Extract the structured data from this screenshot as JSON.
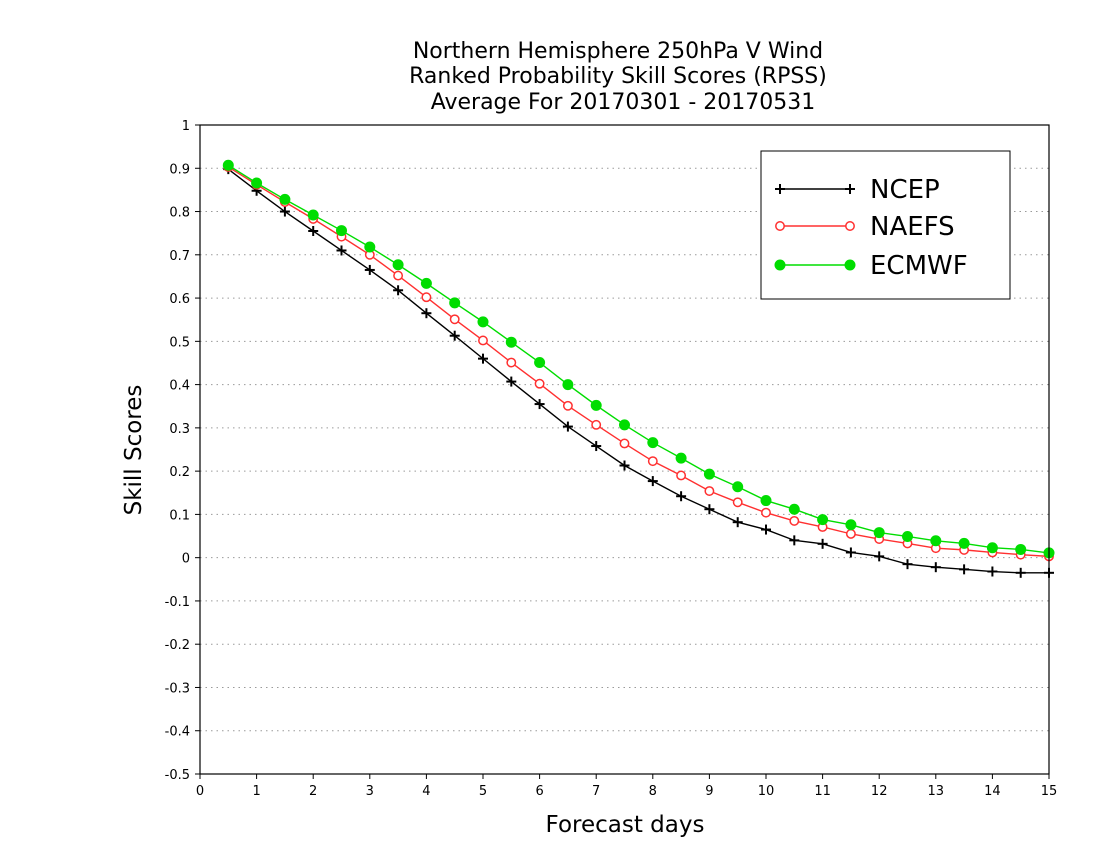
{
  "chart_data": {
    "type": "line",
    "title_lines": [
      "Northern Hemisphere 250hPa V Wind",
      "Ranked Probability Skill Scores (RPSS)",
      "Average For 20170301 - 20170531"
    ],
    "xlabel": "Forecast days",
    "ylabel": "Skill Scores",
    "xlim": [
      0,
      15
    ],
    "ylim": [
      -0.5,
      1
    ],
    "x_ticks": [
      "0",
      "1",
      "2",
      "3",
      "4",
      "5",
      "6",
      "7",
      "8",
      "9",
      "10",
      "11",
      "12",
      "13",
      "14",
      "15"
    ],
    "y_ticks": [
      "-0.5",
      "-0.4",
      "-0.3",
      "-0.2",
      "-0.1",
      "0",
      "0.1",
      "0.2",
      "0.3",
      "0.4",
      "0.5",
      "0.6",
      "0.7",
      "0.8",
      "0.9",
      "1"
    ],
    "grid": "horizontal dotted",
    "legend_position": "top-right",
    "x": [
      0.5,
      1,
      1.5,
      2,
      2.5,
      3,
      3.5,
      4,
      4.5,
      5,
      5.5,
      6,
      6.5,
      7,
      7.5,
      8,
      8.5,
      9,
      9.5,
      10,
      10.5,
      11,
      11.5,
      12,
      12.5,
      13,
      13.5,
      14,
      14.5,
      15
    ],
    "series": [
      {
        "name": "NCEP",
        "color": "#000000",
        "marker": "plus",
        "values": [
          0.898,
          0.848,
          0.8,
          0.755,
          0.71,
          0.665,
          0.618,
          0.565,
          0.513,
          0.46,
          0.407,
          0.355,
          0.303,
          0.258,
          0.213,
          0.177,
          0.142,
          0.112,
          0.082,
          0.065,
          0.04,
          0.032,
          0.012,
          0.003,
          -0.015,
          -0.022,
          -0.027,
          -0.032,
          -0.035,
          -0.035
        ]
      },
      {
        "name": "NAEFS",
        "color": "#ff3030",
        "marker": "open-circle",
        "values": [
          0.903,
          0.862,
          0.822,
          0.783,
          0.742,
          0.7,
          0.652,
          0.602,
          0.551,
          0.502,
          0.451,
          0.402,
          0.351,
          0.307,
          0.264,
          0.223,
          0.19,
          0.154,
          0.128,
          0.104,
          0.085,
          0.071,
          0.055,
          0.043,
          0.033,
          0.022,
          0.018,
          0.012,
          0.007,
          0.003
        ]
      },
      {
        "name": "ECMWF",
        "color": "#00dd00",
        "marker": "filled-circle",
        "values": [
          0.907,
          0.866,
          0.828,
          0.792,
          0.756,
          0.718,
          0.677,
          0.634,
          0.589,
          0.545,
          0.498,
          0.451,
          0.4,
          0.352,
          0.307,
          0.266,
          0.23,
          0.193,
          0.164,
          0.132,
          0.112,
          0.088,
          0.076,
          0.058,
          0.049,
          0.039,
          0.033,
          0.023,
          0.019,
          0.011
        ]
      }
    ]
  }
}
